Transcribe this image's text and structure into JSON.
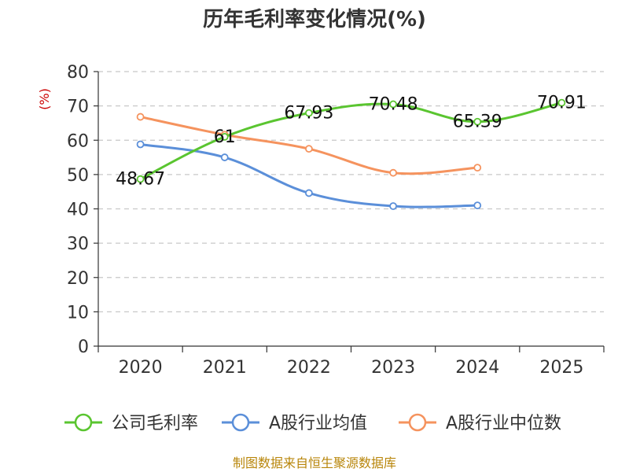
{
  "chart_data": {
    "type": "line",
    "title": "历年毛利率变化情况(%)",
    "ylabel": "(%)",
    "ylim": [
      0,
      80
    ],
    "yticks": [
      0,
      10,
      20,
      30,
      40,
      50,
      60,
      70,
      80
    ],
    "categories": [
      "2020",
      "2021",
      "2022",
      "2023",
      "2024",
      "2025"
    ],
    "grid": true,
    "legend_position": "bottom",
    "series": [
      {
        "name": "公司毛利率",
        "color": "#5ac530",
        "values": [
          48.67,
          61,
          67.93,
          70.48,
          65.39,
          70.91
        ],
        "labels": [
          "48.67",
          "61",
          "67.93",
          "70.48",
          "65.39",
          "70.91"
        ]
      },
      {
        "name": "A股行业均值",
        "color": "#5b8fd9",
        "values": [
          58.8,
          55.0,
          44.6,
          40.8,
          41.0,
          null
        ]
      },
      {
        "name": "A股行业中位数",
        "color": "#f5935e",
        "values": [
          66.8,
          61.6,
          57.5,
          50.5,
          52.0,
          null
        ]
      }
    ],
    "source": "制图数据来自恒生聚源数据库"
  }
}
